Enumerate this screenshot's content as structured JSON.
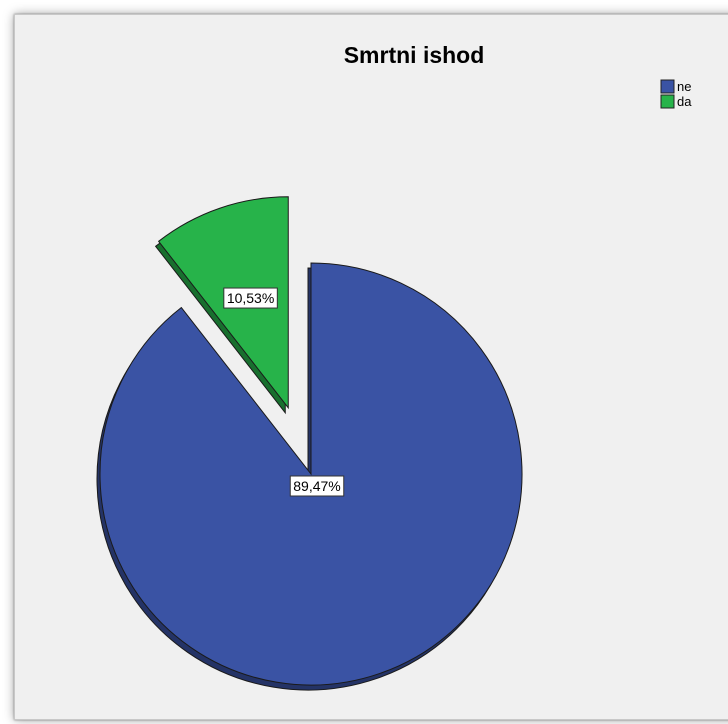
{
  "chart_data": {
    "type": "pie",
    "title": "Smrtni ishod",
    "categories": [
      "ne",
      "da"
    ],
    "values": [
      89.47,
      10.53
    ],
    "labels": [
      "89,47%",
      "10,53%"
    ],
    "colors": [
      "#3a53a4",
      "#27b34a"
    ],
    "exploded": [
      "da"
    ],
    "start": "12 o'clock, clockwise",
    "legend_position": "top-right"
  }
}
